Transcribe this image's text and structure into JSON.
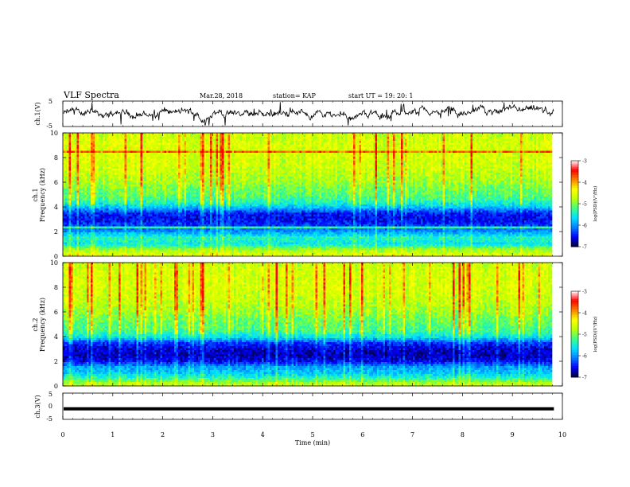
{
  "header": {
    "title": "VLF Spectra",
    "date": "Mar.28, 2018",
    "station": "station= KAP",
    "start": "start  UT =   19: 20: 1"
  },
  "colors": {
    "colormap": [
      "#00003c",
      "#0000ff",
      "#0080ff",
      "#00e0ff",
      "#40ff80",
      "#c0ff00",
      "#ffff00",
      "#ff8000",
      "#ff0000",
      "#ffffff"
    ],
    "trace": "#000000"
  },
  "chart_data": [
    {
      "type": "line",
      "panel": "ch1-waveform",
      "ylabel": "ch.1(V)",
      "ylim": [
        -5,
        5
      ],
      "yticks": [
        "5",
        "-5"
      ],
      "x_range": [
        0,
        9.83
      ],
      "description_values": {
        "mean": 0.0,
        "typical_min": -3,
        "typical_max": 3
      }
    },
    {
      "type": "heatmap",
      "panel": "ch1-spectrogram",
      "ylabel": "ch.1 Frequency (kHz)",
      "ylim": [
        0,
        10
      ],
      "yticks": [
        "0",
        "2",
        "4",
        "6",
        "8",
        "10"
      ],
      "x_range": [
        0,
        9.83
      ],
      "colorbar": {
        "label": "log(PSD)(V²/Hz)",
        "range": [
          -7,
          -3
        ],
        "ticks": [
          "-3",
          "-4",
          "-5",
          "-6",
          "-7"
        ]
      },
      "band_profile_freq_khz": [
        0,
        0.5,
        1,
        1.5,
        2,
        2.5,
        3,
        3.5,
        4,
        4.5,
        5,
        5.5,
        6,
        7,
        8,
        9,
        10
      ],
      "band_profile_logpsd": [
        -4.2,
        -4.6,
        -5.4,
        -5.2,
        -5.9,
        -6.3,
        -6.5,
        -6.4,
        -5.6,
        -5.1,
        -4.9,
        -4.8,
        -4.6,
        -4.4,
        -4.3,
        -4.3,
        -4.4
      ]
    },
    {
      "type": "heatmap",
      "panel": "ch2-spectrogram",
      "ylabel": "ch.2 Frequency (kHz)",
      "ylim": [
        0,
        10
      ],
      "yticks": [
        "0",
        "2",
        "4",
        "6",
        "8",
        "10"
      ],
      "x_range": [
        0,
        9.83
      ],
      "colorbar": {
        "label": "log(PSD)(V²/Hz)",
        "range": [
          -7,
          -3
        ],
        "ticks": [
          "-3",
          "-4",
          "-5",
          "-6",
          "-7"
        ]
      },
      "band_profile_freq_khz": [
        0,
        0.5,
        1,
        1.5,
        2,
        2.5,
        3,
        3.5,
        4,
        4.5,
        5,
        5.5,
        6,
        7,
        8,
        9,
        10
      ],
      "band_profile_logpsd": [
        -4.3,
        -5.0,
        -5.6,
        -5.8,
        -6.5,
        -6.7,
        -6.6,
        -6.3,
        -5.4,
        -5.0,
        -4.9,
        -4.8,
        -4.6,
        -4.4,
        -4.3,
        -4.3,
        -4.4
      ]
    },
    {
      "type": "line",
      "panel": "ch3-waveform",
      "ylabel": "ch.3(V)",
      "ylim": [
        -5,
        5
      ],
      "yticks": [
        "5",
        "0",
        "-5"
      ],
      "x_range": [
        0,
        9.83
      ],
      "values": [
        -1,
        -1
      ]
    }
  ],
  "xaxis": {
    "label": "Time (min)",
    "ticks": [
      "0",
      "1",
      "2",
      "3",
      "4",
      "5",
      "6",
      "7",
      "8",
      "9",
      "10"
    ],
    "range": [
      0,
      10
    ]
  }
}
